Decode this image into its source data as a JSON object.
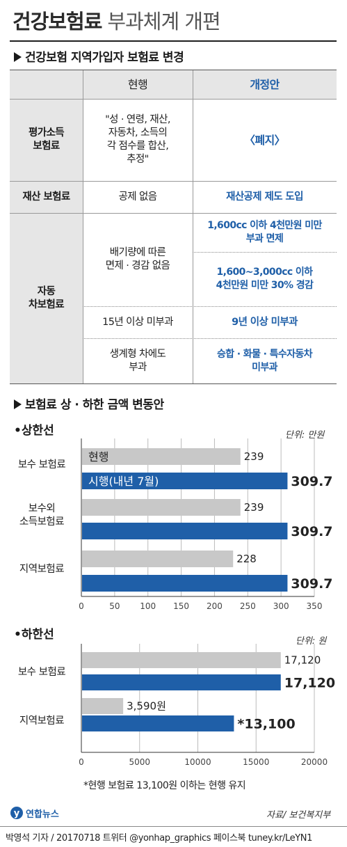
{
  "header": {
    "title_bold": "건강보험료",
    "title_rest": "부과체계 개편"
  },
  "section1": {
    "heading": "건강보험 지역가입자 보험료 변경",
    "col_current": "현행",
    "col_reform": "개정안",
    "rows": {
      "income_label": "평가소득\n보험료",
      "income_current": "\"성 · 연령, 재산,\n자동차, 소득의\n각 점수를 합산,\n추정\"",
      "income_reform": "〈폐지〉",
      "property_label": "재산 보험료",
      "property_current": "공제 없음",
      "property_reform": "재산공제 제도 도입",
      "car_label": "자동\n차보험료",
      "car_current1": "배기량에 따른\n면제 · 경감 없음",
      "car_reform1a": "1,600cc 이하 4천만원 미만\n부과 면제",
      "car_reform1b": "1,600~3,000cc 이하\n4천만원 미만 30% 경감",
      "car_current2": "15년 이상 미부과",
      "car_reform2": "9년 이상 미부과",
      "car_current3": "생계형 차에도\n부과",
      "car_reform3": "승합 · 화물 · 특수자동차\n미부과"
    }
  },
  "section2": {
    "heading": "보험료 상 · 하한 금액 변동안"
  },
  "upper": {
    "heading": "상한선",
    "unit": "단위: 만원",
    "cat1": "보수 보험료",
    "cat2": "보수외\n소득보험료",
    "cat3": "지역보험료"
  },
  "lower": {
    "heading": "하한선",
    "unit": "단위: 원",
    "cat1": "보수 보험료",
    "cat2": "지역보험료",
    "footnote": "*현행 보험료 13,100원 이하는 현행 유지"
  },
  "footer": {
    "logo": "연합뉴스",
    "source": "자료/ 보건복지부",
    "credit": "박영석 기자 / 20170718  트위터 @yonhap_graphics  페이스북 tuney.kr/LeYN1"
  },
  "colors": {
    "current": "#c8c8c8",
    "reform": "#1f5fa8",
    "table_left_bg": "#e6e6e6"
  },
  "chart_data": [
    {
      "type": "bar",
      "orientation": "horizontal",
      "title": "상한선",
      "unit": "단위: 만원",
      "categories": [
        "보수 보험료",
        "보수외 소득보험료",
        "지역보험료"
      ],
      "series": [
        {
          "name": "현행",
          "values": [
            239,
            239,
            228
          ],
          "labels": [
            "239",
            "239",
            "228"
          ]
        },
        {
          "name": "시행(내년 7월)",
          "values": [
            309.7,
            309.7,
            309.7
          ],
          "labels": [
            "309.7",
            "309.7",
            "309.7"
          ]
        }
      ],
      "xlim": [
        0,
        350
      ],
      "xticks": [
        0,
        50,
        100,
        150,
        200,
        250,
        300,
        350
      ],
      "grid": true
    },
    {
      "type": "bar",
      "orientation": "horizontal",
      "title": "하한선",
      "unit": "단위: 원",
      "categories": [
        "보수 보험료",
        "지역보험료"
      ],
      "series": [
        {
          "name": "현행",
          "values": [
            17120,
            3590
          ],
          "labels": [
            "17,120",
            "3,590원"
          ]
        },
        {
          "name": "시행",
          "values": [
            17120,
            13100
          ],
          "labels": [
            "17,120",
            "*13,100"
          ]
        }
      ],
      "xlim": [
        0,
        20000
      ],
      "xticks": [
        0,
        5000,
        10000,
        15000,
        20000
      ],
      "grid": true
    }
  ]
}
